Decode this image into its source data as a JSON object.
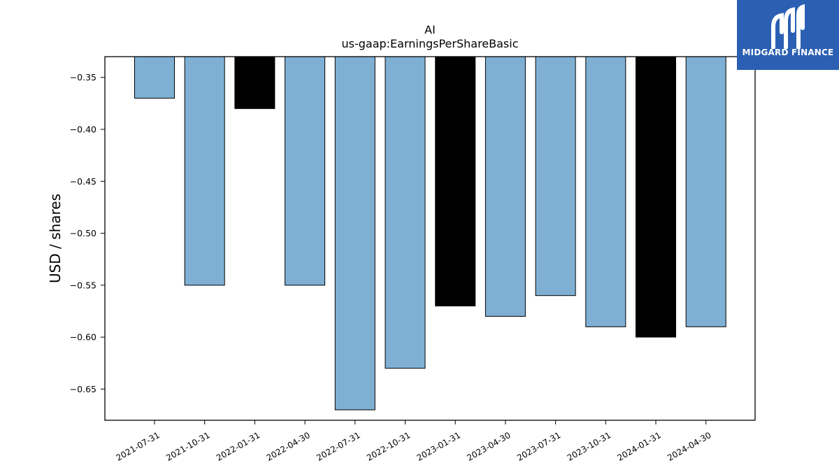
{
  "brand": {
    "name": "MIDGARD FINANCE",
    "color": "#2b5fb3"
  },
  "chart_data": {
    "type": "bar",
    "title": "AI",
    "subtitle": "us-gaap:EarningsPerShareBasic",
    "ylabel": "USD / shares",
    "xlabel": "",
    "ylim": [
      -0.68,
      -0.33
    ],
    "yticks": [
      -0.35,
      -0.4,
      -0.45,
      -0.5,
      -0.55,
      -0.6,
      -0.65
    ],
    "ytick_labels": [
      "−0.35",
      "−0.40",
      "−0.45",
      "−0.50",
      "−0.55",
      "−0.60",
      "−0.65"
    ],
    "grid": false,
    "categories": [
      "2021-07-31",
      "2021-10-31",
      "2022-01-31",
      "2022-04-30",
      "2022-07-31",
      "2022-10-31",
      "2023-01-31",
      "2023-04-30",
      "2023-07-31",
      "2023-10-31",
      "2024-01-31",
      "2024-04-30"
    ],
    "values": [
      -0.37,
      -0.55,
      -0.38,
      -0.55,
      -0.67,
      -0.63,
      -0.57,
      -0.58,
      -0.56,
      -0.59,
      -0.6,
      -0.59
    ],
    "colors": {
      "quarter": "#7fb0d4",
      "fiscal_year_end": "#000000"
    },
    "bar_kind": [
      "quarter",
      "quarter",
      "fiscal_year_end",
      "quarter",
      "quarter",
      "quarter",
      "fiscal_year_end",
      "quarter",
      "quarter",
      "quarter",
      "fiscal_year_end",
      "quarter"
    ]
  }
}
